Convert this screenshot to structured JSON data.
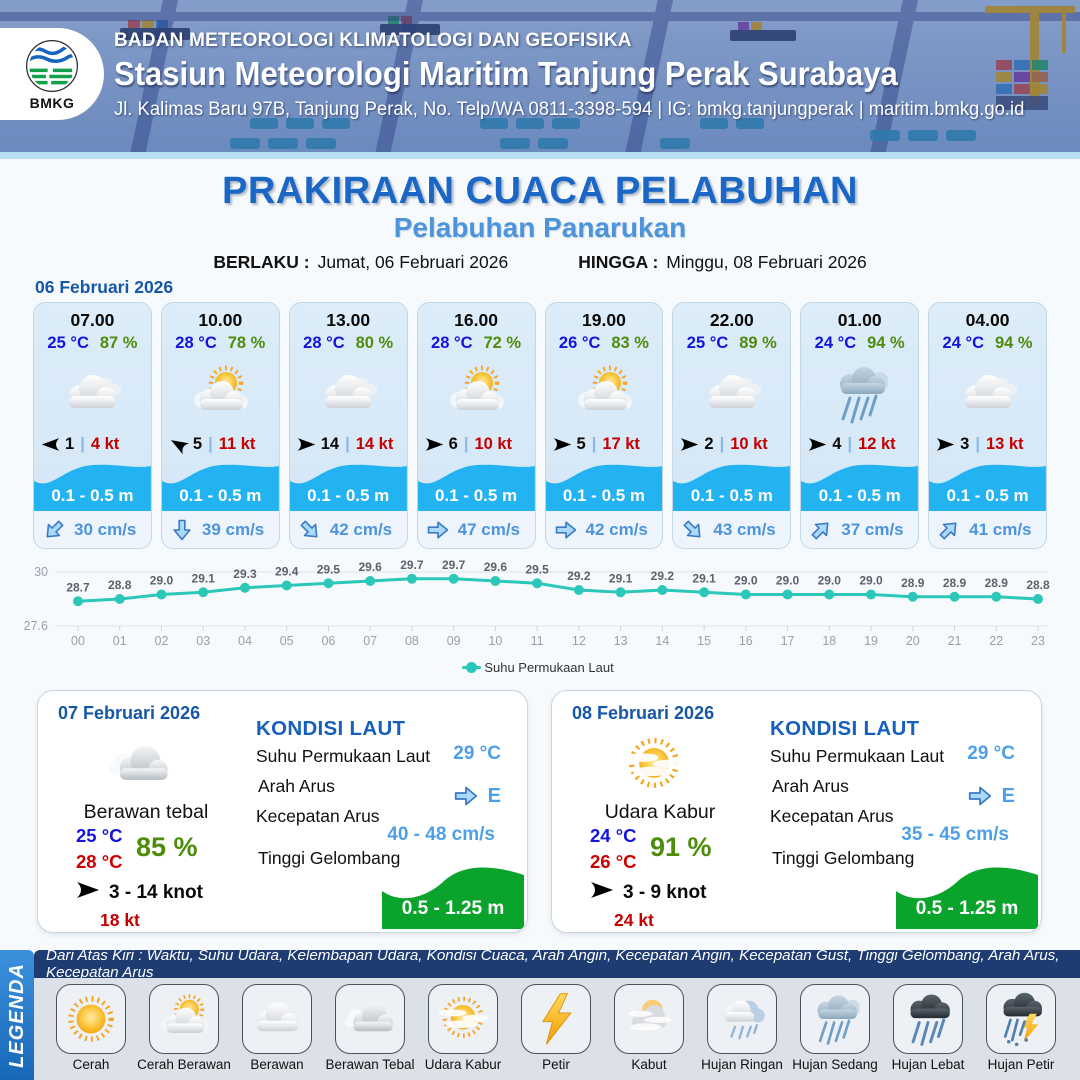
{
  "header": {
    "agency": "BADAN METEOROLOGI KLIMATOLOGI DAN GEOFISIKA",
    "station": "Stasiun Meteorologi Maritim Tanjung Perak Surabaya",
    "address": "Jl. Kalimas Baru 97B, Tanjung Perak, No. Telp/WA 0811-3398-594 | IG: bmkg.tanjungperak | maritim.bmkg.go.id",
    "logo_text": "BMKG"
  },
  "title": {
    "main": "PRAKIRAAN CUACA PELABUHAN",
    "port": "Pelabuhan Panarukan",
    "berlaku_label": "BERLAKU :",
    "berlaku_value": "Jumat, 06 Februari 2026",
    "hingga_label": "HINGGA :",
    "hingga_value": "Minggu, 08 Februari 2026"
  },
  "ui": {
    "wind_sep": "|"
  },
  "day1": {
    "date": "06 Februari 2026",
    "cards": [
      {
        "time": "07.00",
        "temp": "25 °C",
        "hum": "87 %",
        "icon": "#ic-berawan",
        "wind_deg": 180,
        "wind": "1",
        "gust": "4 kt",
        "wave": "0.1 - 0.5 m",
        "cur_deg": 135,
        "current": "30 cm/s"
      },
      {
        "time": "10.00",
        "temp": "28 °C",
        "hum": "78 %",
        "icon": "#ic-cerah-berawan",
        "wind_deg": 210,
        "wind": "5",
        "gust": "11 kt",
        "wave": "0.1 - 0.5 m",
        "cur_deg": 90,
        "current": "39 cm/s"
      },
      {
        "time": "13.00",
        "temp": "28 °C",
        "hum": "80 %",
        "icon": "#ic-berawan",
        "wind_deg": 0,
        "wind": "14",
        "gust": "14 kt",
        "wave": "0.1 - 0.5 m",
        "cur_deg": 45,
        "current": "42 cm/s"
      },
      {
        "time": "16.00",
        "temp": "28 °C",
        "hum": "72 %",
        "icon": "#ic-cerah-berawan",
        "wind_deg": 0,
        "wind": "6",
        "gust": "10 kt",
        "wave": "0.1 - 0.5 m",
        "cur_deg": 0,
        "current": "47 cm/s"
      },
      {
        "time": "19.00",
        "temp": "26 °C",
        "hum": "83 %",
        "icon": "#ic-cerah-berawan",
        "wind_deg": 0,
        "wind": "5",
        "gust": "17 kt",
        "wave": "0.1 - 0.5 m",
        "cur_deg": 0,
        "current": "42 cm/s"
      },
      {
        "time": "22.00",
        "temp": "25 °C",
        "hum": "89 %",
        "icon": "#ic-berawan",
        "wind_deg": 0,
        "wind": "2",
        "gust": "10 kt",
        "wave": "0.1 - 0.5 m",
        "cur_deg": 45,
        "current": "43 cm/s"
      },
      {
        "time": "01.00",
        "temp": "24 °C",
        "hum": "94 %",
        "icon": "#ic-hujan-sedang",
        "wind_deg": 0,
        "wind": "4",
        "gust": "12 kt",
        "wave": "0.1 - 0.5 m",
        "cur_deg": -45,
        "current": "37 cm/s"
      },
      {
        "time": "04.00",
        "temp": "24 °C",
        "hum": "94 %",
        "icon": "#ic-berawan",
        "wind_deg": 0,
        "wind": "3",
        "gust": "13 kt",
        "wave": "0.1 - 0.5 m",
        "cur_deg": -45,
        "current": "41 cm/s"
      }
    ]
  },
  "chart_data": {
    "type": "line",
    "title": "",
    "xlabel": "",
    "ylabel": "",
    "x_labels": [
      "00",
      "01",
      "02",
      "03",
      "04",
      "05",
      "06",
      "07",
      "08",
      "09",
      "10",
      "11",
      "12",
      "13",
      "14",
      "15",
      "16",
      "17",
      "18",
      "19",
      "20",
      "21",
      "22",
      "23"
    ],
    "series": [
      {
        "name": "Suhu Permukaan Laut",
        "values": [
          28.7,
          28.8,
          29.0,
          29.1,
          29.3,
          29.4,
          29.5,
          29.6,
          29.7,
          29.7,
          29.6,
          29.5,
          29.2,
          29.1,
          29.2,
          29.1,
          29.0,
          29.0,
          29.0,
          29.0,
          28.9,
          28.9,
          28.9,
          28.8
        ]
      }
    ],
    "ylim": [
      27.6,
      30
    ],
    "yticks": [
      30,
      27.6
    ],
    "grid": true,
    "legend_position": "bottom",
    "color": "#2bc7b9"
  },
  "days": [
    {
      "date": "07 Februari 2026",
      "icon": "#ic-berawan-tebal",
      "condition": "Berawan tebal",
      "temp_min": "25 °C",
      "temp_max": "28 °C",
      "humidity": "85 %",
      "wind": "3  - 14 knot",
      "gust": "18 kt",
      "sea": {
        "title": "KONDISI LAUT",
        "sst_label": "Suhu Permukaan Laut",
        "sst": "29 °C",
        "arah_label": "Arah Arus",
        "arah": "E",
        "kec_label": "Kecepatan Arus",
        "kecepatan": "40  - 48 cm/s",
        "gel_label": "Tinggi Gelombang",
        "gelombang": "0.5 - 1.25 m"
      }
    },
    {
      "date": "08 Februari 2026",
      "icon": "#ic-udara-kabur",
      "condition": "Udara Kabur",
      "temp_min": "24 °C",
      "temp_max": "26 °C",
      "humidity": "91 %",
      "wind": "3  - 9 knot",
      "gust": "24 kt",
      "sea": {
        "title": "KONDISI LAUT",
        "sst_label": "Suhu Permukaan Laut",
        "sst": "29 °C",
        "arah_label": "Arah Arus",
        "arah": "E",
        "kec_label": "Kecepatan Arus",
        "kecepatan": "35 - 45 cm/s",
        "gel_label": "Tinggi Gelombang",
        "gelombang": "0.5 - 1.25 m"
      }
    }
  ],
  "legend": {
    "sidebar": "LEGENDA",
    "note": "Dari Atas Kiri : Waktu, Suhu Udara, Kelembapan Udara, Kondisi Cuaca, Arah Angin, Kecepatan Angin, Kecepatan Gust, Tinggi Gelombang, Arah Arus, Kecepatan Arus",
    "items": [
      {
        "label": "Cerah",
        "icon": "#ic-cerah"
      },
      {
        "label": "Cerah Berawan",
        "icon": "#ic-cerah-berawan"
      },
      {
        "label": "Berawan",
        "icon": "#ic-berawan"
      },
      {
        "label": "Berawan Tebal",
        "icon": "#ic-berawan-tebal"
      },
      {
        "label": "Udara Kabur",
        "icon": "#ic-udara-kabur"
      },
      {
        "label": "Petir",
        "icon": "#ic-petir"
      },
      {
        "label": "Kabut",
        "icon": "#ic-kabut"
      },
      {
        "label": "Hujan Ringan",
        "icon": "#ic-hujan-ringan"
      },
      {
        "label": "Hujan Sedang",
        "icon": "#ic-hujan-sedang"
      },
      {
        "label": "Hujan Lebat",
        "icon": "#ic-hujan-lebat"
      },
      {
        "label": "Hujan Petir",
        "icon": "#ic-hujan-petir"
      }
    ]
  }
}
